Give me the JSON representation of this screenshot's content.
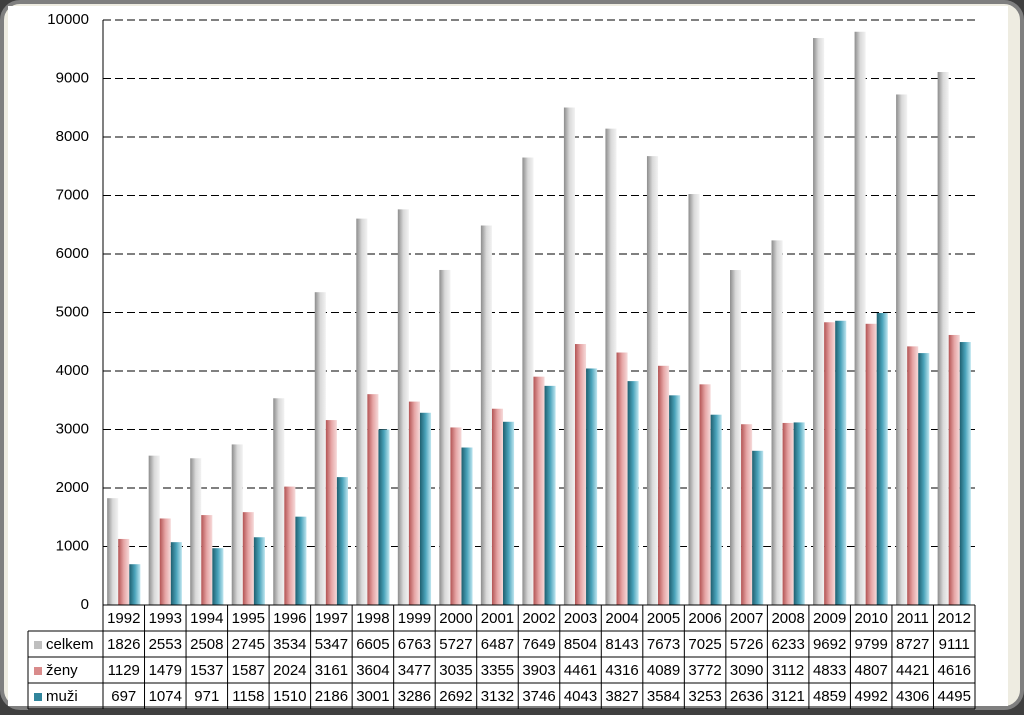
{
  "chart_data": {
    "type": "bar",
    "categories": [
      "1992",
      "1993",
      "1994",
      "1995",
      "1996",
      "1997",
      "1998",
      "1999",
      "2000",
      "2001",
      "2002",
      "2003",
      "2004",
      "2005",
      "2006",
      "2007",
      "2008",
      "2009",
      "2010",
      "2011",
      "2012"
    ],
    "series": [
      {
        "name": "celkem",
        "color": "#bfbfbf",
        "values": [
          1826,
          2553,
          2508,
          2745,
          3534,
          5347,
          6605,
          6763,
          5727,
          6487,
          7649,
          8504,
          8143,
          7673,
          7025,
          5726,
          6233,
          9692,
          9799,
          8727,
          9111
        ]
      },
      {
        "name": "ženy",
        "color": "#d98b8b",
        "values": [
          1129,
          1479,
          1537,
          1587,
          2024,
          3161,
          3604,
          3477,
          3035,
          3355,
          3903,
          4461,
          4316,
          4089,
          3772,
          3090,
          3112,
          4833,
          4807,
          4421,
          4616
        ]
      },
      {
        "name": "muži",
        "color": "#31859c",
        "values": [
          697,
          1074,
          971,
          1158,
          1510,
          2186,
          3001,
          3286,
          2692,
          3132,
          3746,
          4043,
          3827,
          3584,
          3253,
          2636,
          3121,
          4859,
          4992,
          4306,
          4495
        ]
      }
    ],
    "ylim": [
      0,
      10000
    ],
    "yticks": [
      0,
      1000,
      2000,
      3000,
      4000,
      5000,
      6000,
      7000,
      8000,
      9000,
      10000
    ],
    "grid": true
  }
}
